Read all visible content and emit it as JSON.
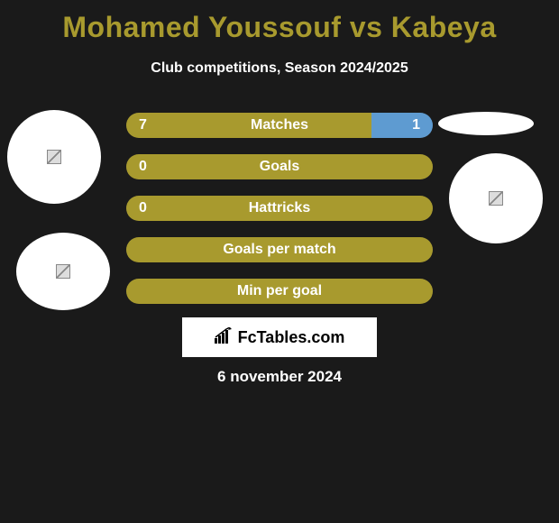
{
  "title": "Mohamed Youssouf vs Kabeya",
  "subtitle": "Club competitions, Season 2024/2025",
  "colors": {
    "accent": "#a89a2e",
    "secondary": "#5e9bd1",
    "background": "#1a1a1a",
    "text": "#ffffff",
    "logo_bg": "#ffffff"
  },
  "stats": [
    {
      "label": "Matches",
      "left_value": "7",
      "right_value": "1",
      "left_pct": 80,
      "right_pct": 20,
      "show_left": true,
      "show_right": true
    },
    {
      "label": "Goals",
      "left_value": "0",
      "right_value": "",
      "left_pct": 100,
      "right_pct": 0,
      "show_left": true,
      "show_right": false
    },
    {
      "label": "Hattricks",
      "left_value": "0",
      "right_value": "",
      "left_pct": 100,
      "right_pct": 0,
      "show_left": true,
      "show_right": false
    },
    {
      "label": "Goals per match",
      "left_value": "",
      "right_value": "",
      "left_pct": 100,
      "right_pct": 0,
      "show_left": false,
      "show_right": false
    },
    {
      "label": "Min per goal",
      "left_value": "",
      "right_value": "",
      "left_pct": 100,
      "right_pct": 0,
      "show_left": false,
      "show_right": false
    }
  ],
  "logo_text": "FcTables.com",
  "date": "6 november 2024"
}
